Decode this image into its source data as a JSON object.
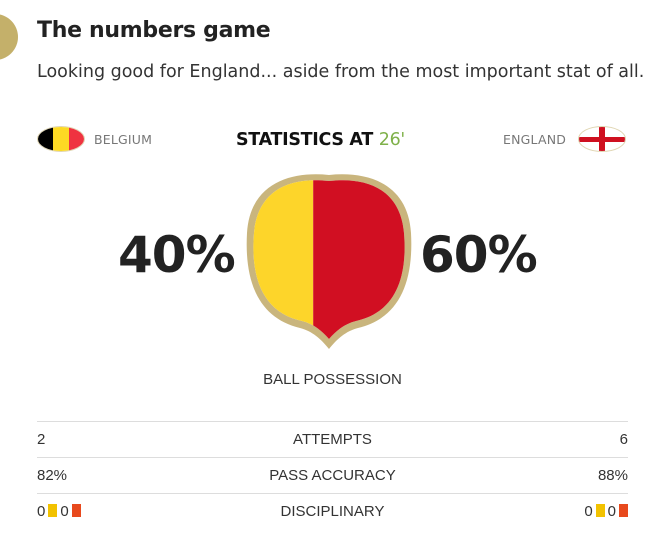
{
  "article": {
    "heading": "The numbers game",
    "subheading": "Looking good for England... aside from the most important stat of all."
  },
  "teams": {
    "home": {
      "name": "BELGIUM",
      "flag_colors": [
        "#000000",
        "#fdda24",
        "#ef3340"
      ]
    },
    "away": {
      "name": "ENGLAND",
      "flag_colors": [
        "#ffffff",
        "#cf1020"
      ]
    }
  },
  "stats_header": {
    "title": "STATISTICS AT",
    "minute": "26'"
  },
  "possession": {
    "home_pct": 40,
    "away_pct": 60,
    "home_display": "40%",
    "away_display": "60%",
    "label": "BALL POSSESSION",
    "home_color": "#fdd52a",
    "away_color": "#d10f22",
    "border_color": "#c9b57d"
  },
  "rows": [
    {
      "home": "2",
      "label": "ATTEMPTS",
      "away": "6"
    },
    {
      "home": "82%",
      "label": "PASS ACCURACY",
      "away": "88%"
    }
  ],
  "disciplinary": {
    "label": "DISCIPLINARY",
    "home_yellow": "0",
    "home_red": "0",
    "away_yellow": "0",
    "away_red": "0"
  }
}
